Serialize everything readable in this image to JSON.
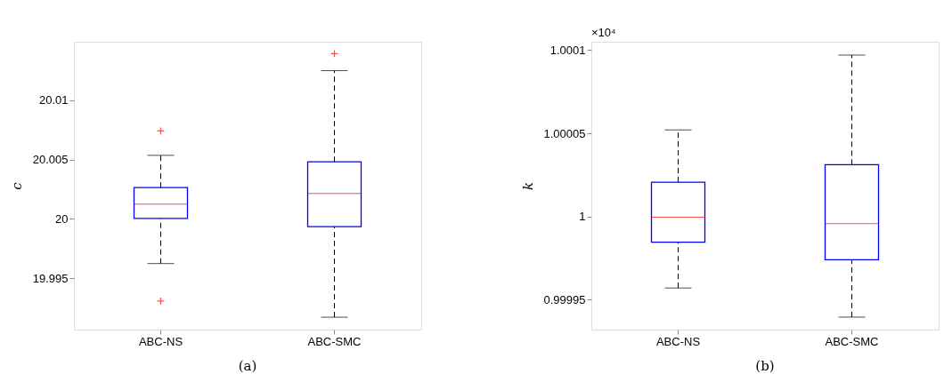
{
  "chart_data": [
    {
      "type": "box",
      "categories": [
        "ABC-NS",
        "ABC-SMC"
      ],
      "ylabel": "c",
      "ylim": [
        19.9907,
        20.0149
      ],
      "yticks": [
        19.995,
        20,
        20.005,
        20.01
      ],
      "grid": false,
      "marker": "cross",
      "series": [
        {
          "color": "#0000ff",
          "boxes": [
            {
              "low": 19.99625,
              "q1": 20.00005,
              "median": 20.00125,
              "q3": 20.00264,
              "high": 20.00535,
              "outliers": [
                20.0074,
                19.9931
              ]
            },
            {
              "low": 19.99174,
              "q1": 19.99935,
              "median": 20.00215,
              "q3": 20.0048,
              "high": 20.01247,
              "outliers": [
                20.0139
              ]
            }
          ]
        }
      ],
      "annotations": [
        "(a)"
      ]
    },
    {
      "type": "box",
      "categories": [
        "ABC-NS",
        "ABC-SMC"
      ],
      "ylabel": "k",
      "ylim": [
        0.999932,
        1.000105
      ],
      "yticks": [
        0.99995,
        1,
        1.00005,
        1.0001
      ],
      "grid": false,
      "marker": "cross",
      "series": [
        {
          "color": "#0000ff",
          "boxes": [
            {
              "low": 0.999957,
              "q1": 0.9999845,
              "median": 0.9999995,
              "q3": 1.0000206,
              "high": 1.000052
            },
            {
              "low": 0.9999395,
              "q1": 0.999974,
              "median": 0.9999957,
              "q3": 1.0000311,
              "high": 1.000097
            }
          ]
        }
      ],
      "annotations": [
        "×10⁴",
        "(b)"
      ]
    }
  ]
}
